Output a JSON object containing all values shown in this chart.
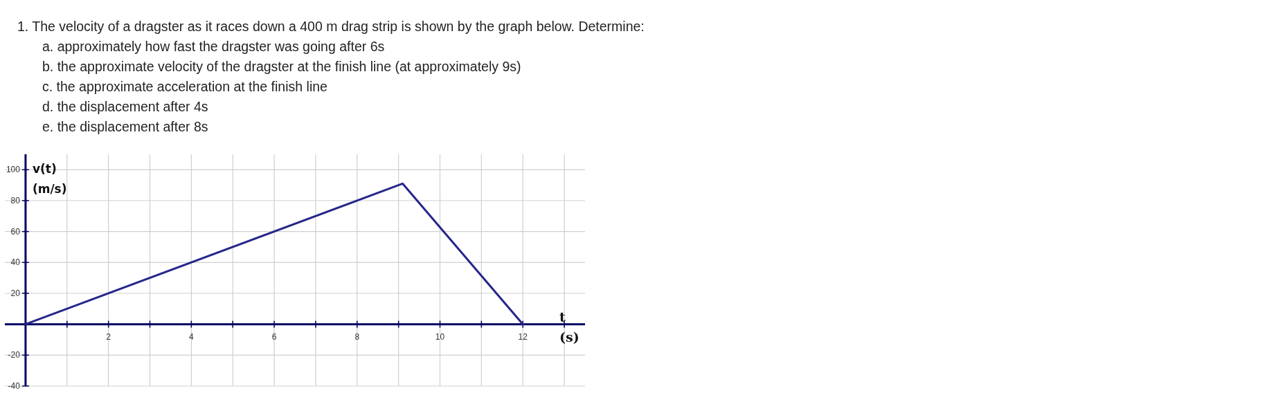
{
  "chart_data": {
    "type": "line",
    "title": "1. The velocity of a dragster as it races down a 400 m drag strip is shown by the graph below. Determine:",
    "annotations": [
      "a. approximately how fast the dragster was going after 6s",
      "b. the approximate velocity of the dragster at the finish line (at approximately 9s)",
      "c. the approximate acceleration at the finish line",
      "d. the displacement after 4s",
      "e. the displacement after 8s"
    ],
    "xlabel": "t\n(s)",
    "ylabel": "v(t)\n(m/s)",
    "x": [
      0,
      9.1,
      12
    ],
    "series": [
      {
        "color": "#26268a",
        "values": [
          0,
          91,
          0
        ]
      }
    ],
    "xlim": [
      -0.5,
      13.5
    ],
    "ylim": [
      -40,
      110
    ],
    "xticks": [
      {
        "value": 1,
        "label": null
      },
      2,
      {
        "value": 3,
        "label": null
      },
      4,
      {
        "value": 5,
        "label": null
      },
      6,
      {
        "value": 7,
        "label": null
      },
      8,
      {
        "value": 9,
        "label": null
      },
      10,
      {
        "value": 11,
        "label": null
      },
      12,
      {
        "value": 13,
        "label": null
      }
    ],
    "yticks": [
      -40,
      -20,
      20,
      40,
      60,
      80,
      100
    ],
    "grid": true
  }
}
